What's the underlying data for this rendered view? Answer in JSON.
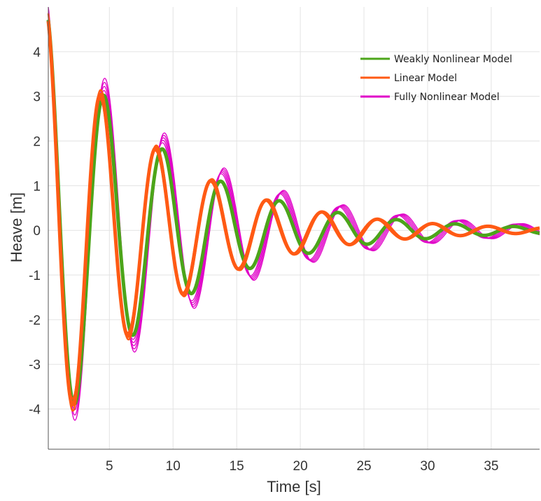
{
  "chart_data": {
    "type": "line",
    "title": "",
    "xlabel": "Time [s]",
    "ylabel": "Heave [m]",
    "xlim": [
      0.2,
      38.8
    ],
    "ylim": [
      -4.9,
      5
    ],
    "x_ticks": [
      5,
      10,
      15,
      20,
      25,
      30,
      35
    ],
    "y_ticks": [
      4,
      3,
      2,
      1,
      0,
      -1,
      -2,
      -3,
      -4
    ],
    "x_tick_labels": [
      "5",
      "10",
      "15",
      "20",
      "25",
      "30",
      "35"
    ],
    "y_tick_labels": [
      "4",
      "3",
      "2",
      "1",
      "0",
      "-1",
      "-2",
      "-3",
      "-4"
    ],
    "grid": true,
    "legend_position": "top-right",
    "series": [
      {
        "name": "Weakly Nonlinear Model",
        "color": "#4ca51a",
        "amplitude": 5,
        "period": 4.6,
        "decay": 0.11,
        "phase_shift": 0.2,
        "variants": [
          0
        ]
      },
      {
        "name": "Linear Model",
        "color": "#ff5a14",
        "amplitude": 5,
        "period": 4.35,
        "decay": 0.115,
        "phase_shift": 0.0,
        "variants": [
          -0.06,
          0,
          0.06
        ]
      },
      {
        "name": "Fully Nonlinear Model",
        "color": "#e000c8",
        "amplitude": 5,
        "period": 4.65,
        "decay": 0.095,
        "phase_shift": 0.25,
        "variants": [
          -0.1,
          -0.05,
          0,
          0.05,
          0.1
        ]
      }
    ]
  }
}
